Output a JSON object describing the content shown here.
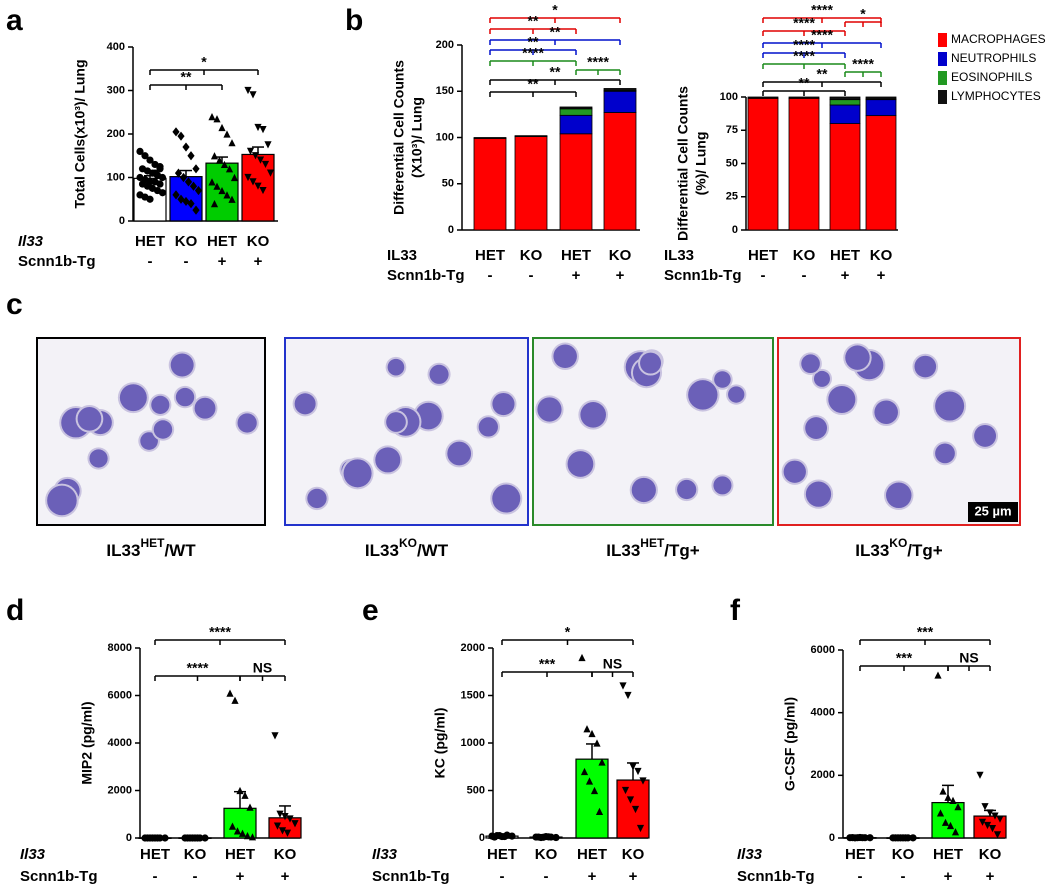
{
  "panel_labels": [
    "a",
    "b",
    "c",
    "d",
    "e",
    "f"
  ],
  "micrographs": [
    {
      "base": "IL33",
      "sup": "HET",
      "suffix": "/WT"
    },
    {
      "base": "IL33",
      "sup": "KO",
      "suffix": "/WT"
    },
    {
      "base": "IL33",
      "sup": "HET",
      "suffix": "/Tg+"
    },
    {
      "base": "IL33",
      "sup": "KO",
      "suffix": "/Tg+"
    }
  ],
  "scale_bar": "25 µm",
  "chart_data": [
    {
      "type": "bar",
      "ylabel": "Total Cells(x10³)/ Lung",
      "ylim": [
        0,
        400
      ],
      "yticks": [
        0,
        100,
        200,
        300,
        400
      ],
      "category_label": "Il33",
      "categories": [
        "HET",
        "KO",
        "HET",
        "KO"
      ],
      "secondary_label": "Scnn1b-Tg",
      "secondary_categories": [
        "-",
        "-",
        "+",
        "+"
      ],
      "colors": [
        "#ffffff",
        "#0000ff",
        "#00cc00",
        "#ff0000"
      ],
      "markers": [
        "circle",
        "diamond",
        "triangle",
        "triangle-down"
      ],
      "values": [
        98,
        102,
        133,
        153
      ],
      "errors": [
        6,
        14,
        14,
        17
      ],
      "points": [
        [
          160,
          150,
          140,
          130,
          125,
          120,
          115,
          110,
          105,
          100,
          100,
          95,
          90,
          90,
          85,
          85,
          80,
          75,
          70,
          65,
          60,
          55,
          50,
          110,
          120
        ],
        [
          205,
          195,
          170,
          150,
          120,
          110,
          100,
          90,
          80,
          70,
          60,
          50,
          45,
          40,
          25
        ],
        [
          240,
          235,
          215,
          200,
          180,
          150,
          140,
          130,
          120,
          100,
          90,
          80,
          70,
          60,
          50,
          40
        ],
        [
          300,
          290,
          215,
          210,
          175,
          160,
          150,
          140,
          130,
          110,
          100,
          90,
          80,
          70
        ]
      ],
      "annotations": [
        "*",
        "**"
      ]
    },
    {
      "type": "stacked_bar",
      "ylabel": [
        "Differential Cell Counts",
        "(X10³)/ Lung"
      ],
      "ylim": [
        0,
        200
      ],
      "yticks": [
        0,
        50,
        100,
        150,
        200
      ],
      "category_label": "IL33",
      "categories": [
        "HET",
        "KO",
        "HET",
        "KO"
      ],
      "secondary_label": "Scnn1b-Tg",
      "secondary_categories": [
        "-",
        "-",
        "+",
        "+"
      ],
      "series": [
        {
          "name": "MACROPHAGES",
          "color": "#ff0000",
          "values": [
            99,
            101,
            104,
            127
          ]
        },
        {
          "name": "NEUTROPHILS",
          "color": "#0000cc",
          "values": [
            0,
            0,
            20,
            23
          ]
        },
        {
          "name": "EOSINOPHILS",
          "color": "#229922",
          "values": [
            0,
            0,
            7,
            1
          ]
        },
        {
          "name": "LYMPHOCYTES",
          "color": "#111111",
          "values": [
            1,
            1,
            2,
            2
          ]
        }
      ],
      "annotations": [
        "*",
        "**",
        "**",
        "**",
        "****",
        "****",
        "**",
        "**"
      ]
    },
    {
      "type": "stacked_bar",
      "ylabel": [
        "Differential Cell Counts",
        "(%)/ Lung"
      ],
      "ylim": [
        0,
        100
      ],
      "yticks": [
        0,
        25,
        50,
        75,
        100
      ],
      "category_label": "IL33",
      "categories": [
        "HET",
        "KO",
        "HET",
        "KO"
      ],
      "secondary_label": "Scnn1b-Tg",
      "secondary_categories": [
        "-",
        "-",
        "+",
        "+"
      ],
      "series": [
        {
          "color": "#ff0000",
          "values": [
            99,
            99,
            80,
            86
          ]
        },
        {
          "color": "#0000cc",
          "values": [
            0,
            0,
            14,
            12
          ]
        },
        {
          "color": "#229922",
          "values": [
            0,
            0,
            4,
            0.5
          ]
        },
        {
          "color": "#111111",
          "values": [
            1,
            1,
            2,
            1.5
          ]
        }
      ],
      "annotations": [
        "****",
        "*",
        "****",
        "****",
        "****",
        "****",
        "****",
        "**",
        "**"
      ]
    },
    {
      "type": "bar",
      "ylabel": "MIP2 (pg/ml)",
      "ylim": [
        0,
        8000
      ],
      "yticks": [
        0,
        2000,
        4000,
        6000,
        8000
      ],
      "category_label": "Il33",
      "categories": [
        "HET",
        "KO",
        "HET",
        "KO"
      ],
      "secondary_label": "Scnn1b-Tg",
      "secondary_categories": [
        "-",
        "-",
        "+",
        "+"
      ],
      "colors": [
        "#ffffff",
        "#0000ff",
        "#00ff00",
        "#ff0000"
      ],
      "markers": [
        "circle",
        "circle",
        "triangle",
        "triangle-down"
      ],
      "values": [
        5,
        5,
        1250,
        850
      ],
      "errors": [
        0,
        0,
        700,
        500
      ],
      "points": [
        [
          0,
          0,
          0,
          0,
          0,
          0,
          0,
          0
        ],
        [
          0,
          0,
          0,
          0,
          0,
          0,
          0,
          0
        ],
        [
          6100,
          5800,
          2000,
          1800,
          1300,
          500,
          300,
          200,
          100,
          50
        ],
        [
          4300,
          1000,
          900,
          800,
          600,
          500,
          300,
          200
        ]
      ],
      "annotations": [
        "****",
        "****",
        "NS"
      ]
    },
    {
      "type": "bar",
      "ylabel": "KC (pg/ml)",
      "ylim": [
        0,
        2000
      ],
      "yticks": [
        0,
        500,
        1000,
        1500,
        2000
      ],
      "category_label": "Il33",
      "categories": [
        "HET",
        "KO",
        "HET",
        "KO"
      ],
      "secondary_label": "Scnn1b-Tg",
      "secondary_categories": [
        "-",
        "-",
        "+",
        "+"
      ],
      "colors": [
        "#ffffff",
        "#0000ff",
        "#00ff00",
        "#ff0000"
      ],
      "markers": [
        "circle",
        "circle",
        "triangle",
        "triangle-down"
      ],
      "values": [
        20,
        10,
        830,
        610
      ],
      "errors": [
        5,
        3,
        160,
        180
      ],
      "points": [
        [
          20,
          25,
          15,
          30,
          20,
          10,
          25,
          15
        ],
        [
          10,
          5,
          15,
          10,
          5,
          10,
          8,
          12
        ],
        [
          1900,
          1150,
          1100,
          1000,
          800,
          700,
          600,
          500,
          280
        ],
        [
          1600,
          1500,
          750,
          700,
          600,
          500,
          400,
          300,
          100
        ]
      ],
      "annotations": [
        "*",
        "***",
        "NS"
      ]
    },
    {
      "type": "bar",
      "ylabel": "G-CSF (pg/ml)",
      "ylim": [
        0,
        6000
      ],
      "yticks": [
        0,
        2000,
        4000,
        6000
      ],
      "category_label": "Il33",
      "categories": [
        "HET",
        "KO",
        "HET",
        "KO"
      ],
      "secondary_label": "Scnn1b-Tg",
      "secondary_categories": [
        "-",
        "-",
        "+",
        "+"
      ],
      "colors": [
        "#ffffff",
        "#0000ff",
        "#00ff00",
        "#ff0000"
      ],
      "markers": [
        "circle",
        "circle",
        "triangle",
        "triangle-down"
      ],
      "values": [
        10,
        5,
        1130,
        700
      ],
      "errors": [
        3,
        2,
        550,
        180
      ],
      "points": [
        [
          10,
          5,
          15,
          10,
          8,
          12,
          10,
          10
        ],
        [
          5,
          5,
          5,
          5,
          5,
          5,
          5,
          5
        ],
        [
          5200,
          1500,
          1300,
          1200,
          1000,
          800,
          500,
          400,
          200
        ],
        [
          2000,
          1000,
          800,
          700,
          600,
          500,
          400,
          300,
          100
        ]
      ],
      "annotations": [
        "***",
        "***",
        "NS"
      ]
    }
  ]
}
